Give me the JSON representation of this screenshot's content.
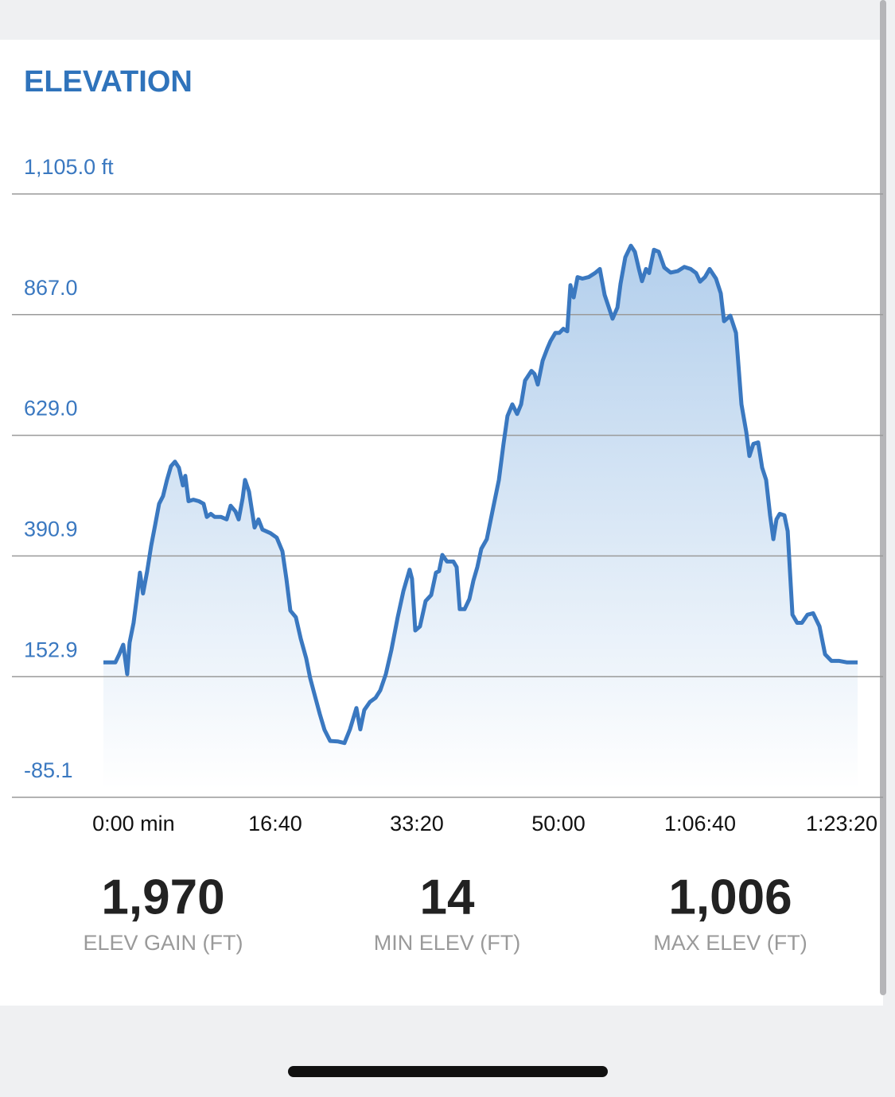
{
  "chart_data": {
    "type": "line",
    "title": "ELEVATION",
    "x": [
      -213,
      -129,
      -101,
      -73,
      -45,
      -28,
      0,
      22,
      45,
      67,
      96,
      124,
      152,
      180,
      208,
      236,
      264,
      292,
      320,
      348,
      365,
      388,
      421,
      461,
      494,
      517,
      545,
      573,
      618,
      657,
      685,
      719,
      742,
      770,
      787,
      815,
      854,
      882,
      910,
      966,
      1011,
      1051,
      1079,
      1107,
      1146,
      1180,
      1219,
      1247,
      1281,
      1315,
      1348,
      1388,
      1444,
      1489,
      1528,
      1573,
      1601,
      1629,
      1669,
      1708,
      1742,
      1781,
      1820,
      1865,
      1905,
      1949,
      1966,
      1989,
      2022,
      2062,
      2101,
      2135,
      2157,
      2180,
      2213,
      2258,
      2281,
      2303,
      2337,
      2371,
      2399,
      2427,
      2455,
      2494,
      2539,
      2579,
      2612,
      2640,
      2674,
      2708,
      2736,
      2764,
      2809,
      2831,
      2854,
      2888,
      2921,
      2944,
      2978,
      3006,
      3034,
      3062,
      3084,
      3107,
      3135,
      3169,
      3213,
      3258,
      3292,
      3326,
      3382,
      3416,
      3438,
      3472,
      3511,
      3539,
      3568,
      3590,
      3618,
      3640,
      3674,
      3708,
      3747,
      3792,
      3843,
      3888,
      3933,
      3972,
      4000,
      4034,
      4067,
      4112,
      4146,
      4169,
      4213,
      4253,
      4292,
      4326,
      4348,
      4376,
      4410,
      4438,
      4466,
      4494,
      4517,
      4539,
      4562,
      4595,
      4618,
      4652,
      4685,
      4719,
      4758,
      4798,
      4843,
      4882,
      4927,
      4983,
      5039,
      5112
    ],
    "values": [
      181,
      181,
      197,
      216,
      158,
      220,
      259,
      306,
      358,
      317,
      361,
      411,
      452,
      494,
      509,
      541,
      568,
      577,
      565,
      530,
      549,
      499,
      502,
      499,
      494,
      468,
      474,
      468,
      468,
      463,
      490,
      479,
      463,
      505,
      541,
      518,
      447,
      463,
      443,
      436,
      427,
      400,
      346,
      283,
      270,
      228,
      189,
      150,
      114,
      79,
      48,
      26,
      25,
      22,
      49,
      91,
      49,
      87,
      103,
      111,
      126,
      158,
      205,
      270,
      322,
      364,
      346,
      244,
      252,
      302,
      314,
      358,
      361,
      393,
      380,
      380,
      369,
      286,
      286,
      306,
      342,
      369,
      405,
      424,
      486,
      541,
      612,
      667,
      690,
      671,
      690,
      737,
      756,
      750,
      729,
      776,
      800,
      815,
      831,
      831,
      839,
      834,
      925,
      901,
      941,
      938,
      941,
      949,
      957,
      906,
      859,
      881,
      928,
      980,
      1003,
      991,
      957,
      933,
      957,
      949,
      995,
      991,
      960,
      950,
      953,
      961,
      957,
      949,
      932,
      941,
      957,
      938,
      909,
      854,
      865,
      831,
      690,
      635,
      588,
      612,
      615,
      565,
      541,
      471,
      424,
      463,
      474,
      471,
      440,
      275,
      259,
      259,
      275,
      278,
      252,
      197,
      184,
      184,
      181,
      181
    ],
    "color": "#3a78c0",
    "xlim": [
      -213,
      5112
    ],
    "ylim": [
      -85.1,
      1105.0
    ],
    "xticks": [
      {
        "value": 0,
        "label": "0:00 min"
      },
      {
        "value": 1000,
        "label": "16:40"
      },
      {
        "value": 2000,
        "label": "33:20"
      },
      {
        "value": 3000,
        "label": "50:00"
      },
      {
        "value": 4000,
        "label": "1:06:40"
      },
      {
        "value": 5000,
        "label": "1:23:20"
      }
    ],
    "yticks": [
      {
        "value": 1105.0,
        "label": "1,105.0 ft"
      },
      {
        "value": 867.0,
        "label": "867.0"
      },
      {
        "value": 629.0,
        "label": "629.0"
      },
      390.9,
      152.9,
      -85.1
    ],
    "grid": true
  },
  "stats": [
    {
      "value": "1,970",
      "label": "ELEV GAIN (FT)"
    },
    {
      "value": "14",
      "label": "MIN ELEV (FT)"
    },
    {
      "value": "1,006",
      "label": "MAX ELEV (FT)"
    }
  ]
}
